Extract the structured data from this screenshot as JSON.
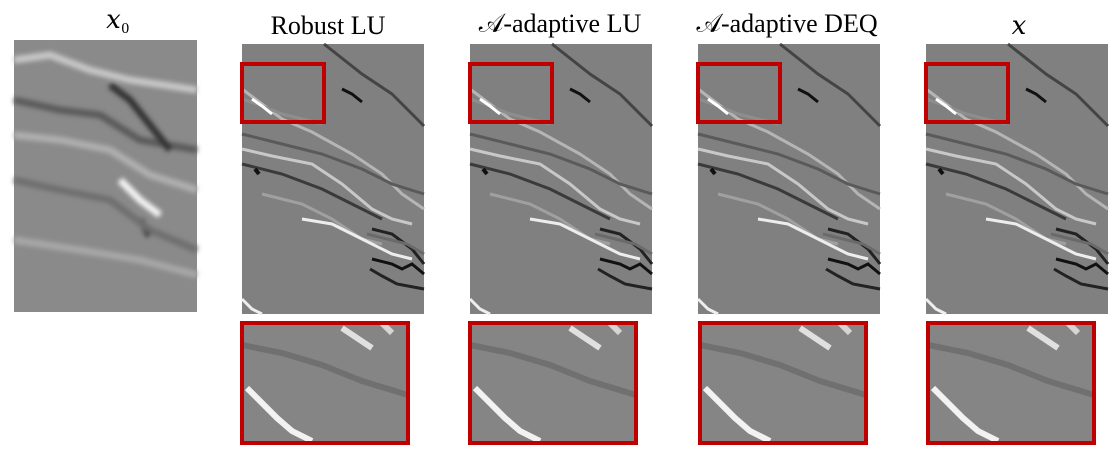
{
  "panels": [
    {
      "title": "𝑥₀"
    },
    {
      "title": "Robust LU"
    },
    {
      "title": "𝒜-adaptive LU"
    },
    {
      "title": "𝒜-adaptive DEQ"
    },
    {
      "title": "𝑥"
    }
  ]
}
